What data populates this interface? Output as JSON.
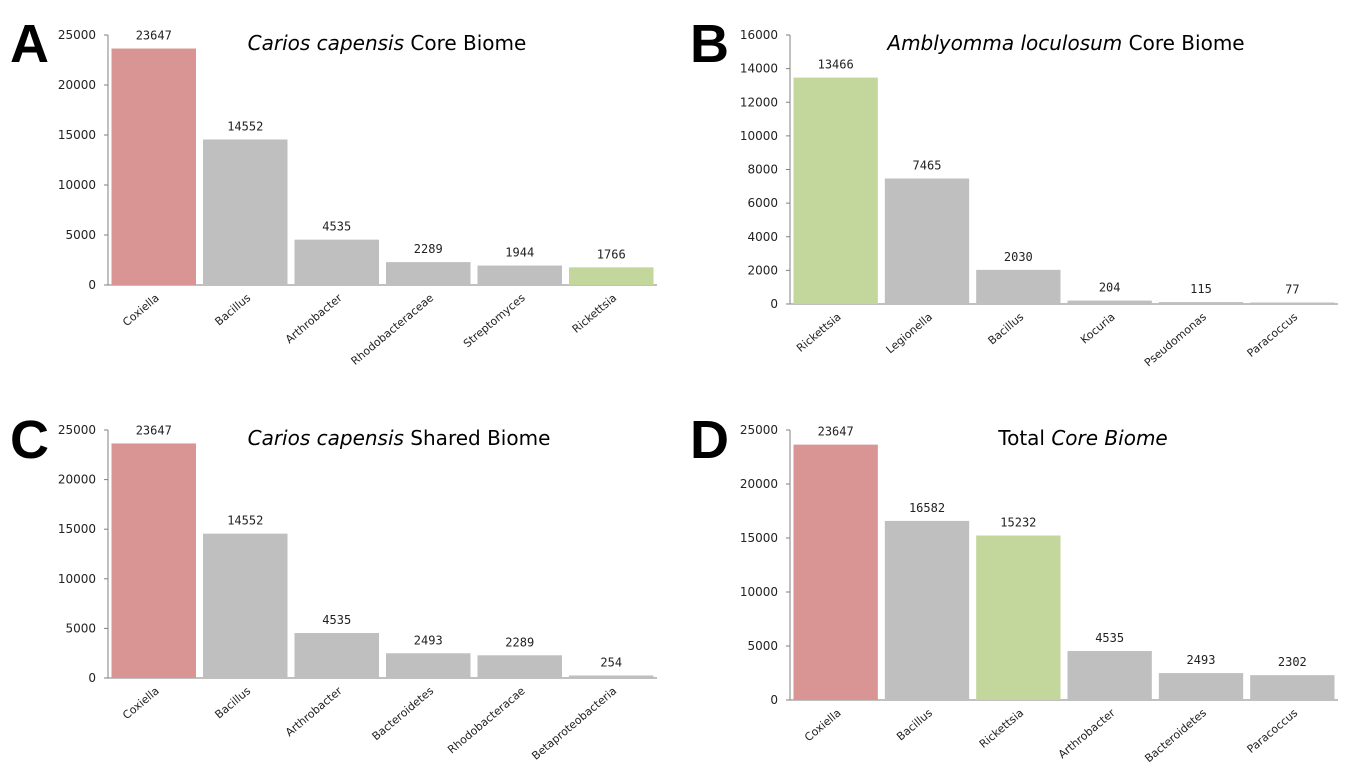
{
  "colors": {
    "coxiella": "#d99594",
    "rickettsia": "#c3d69b",
    "other": "#bfbfbf",
    "axis": "#808080"
  },
  "chart_data": [
    {
      "panel": "A",
      "type": "bar",
      "title_italic": "Carios capensis",
      "title_normal": " Core Biome",
      "categories": [
        "Coxiella",
        "Bacillus",
        "Arthrobacter",
        "Rhodobacteraceae",
        "Streptomyces",
        "Rickettsia"
      ],
      "values": [
        23647,
        14552,
        4535,
        2289,
        1944,
        1766
      ],
      "yticks": [
        "0",
        "5000",
        "10000",
        "15000",
        "20000",
        "25000"
      ],
      "ylim": [
        0,
        25000
      ],
      "bar_colors": [
        "coxiella",
        "other",
        "other",
        "other",
        "other",
        "rickettsia"
      ]
    },
    {
      "panel": "B",
      "type": "bar",
      "title_italic": "Amblyomma loculosum",
      "title_normal": " Core Biome",
      "categories": [
        "Rickettsia",
        "Legionella",
        "Bacillus",
        "Kocuria",
        "Pseudomonas",
        "Paracoccus"
      ],
      "values": [
        13466,
        7465,
        2030,
        204,
        115,
        77
      ],
      "yticks": [
        "0",
        "2000",
        "4000",
        "6000",
        "8000",
        "10000",
        "12000",
        "14000",
        "16000"
      ],
      "ylim": [
        0,
        16000
      ],
      "bar_colors": [
        "rickettsia",
        "other",
        "other",
        "other",
        "other",
        "other"
      ]
    },
    {
      "panel": "C",
      "type": "bar",
      "title_italic": "Carios capensis",
      "title_normal": " Shared Biome",
      "categories": [
        "Coxiella",
        "Bacillus",
        "Arthrobacter",
        "Bacteroidetes",
        "Rhodobacteracae",
        "Betaproteobacteria"
      ],
      "values": [
        23647,
        14552,
        4535,
        2493,
        2289,
        254
      ],
      "yticks": [
        "0",
        "5000",
        "10000",
        "15000",
        "20000",
        "25000"
      ],
      "ylim": [
        0,
        25000
      ],
      "bar_colors": [
        "coxiella",
        "other",
        "other",
        "other",
        "other",
        "other"
      ]
    },
    {
      "panel": "D",
      "type": "bar",
      "title_normal_prefix": "Total ",
      "title_italic": "Core Biome",
      "categories": [
        "Coxiella",
        "Bacillus",
        "Rickettsia",
        "Arthrobacter",
        "Bacteroidetes",
        "Paracoccus"
      ],
      "values": [
        23647,
        16582,
        15232,
        4535,
        2493,
        2302
      ],
      "yticks": [
        "0",
        "5000",
        "10000",
        "15000",
        "20000",
        "25000"
      ],
      "ylim": [
        0,
        25000
      ],
      "bar_colors": [
        "coxiella",
        "other",
        "rickettsia",
        "other",
        "other",
        "other"
      ]
    }
  ]
}
